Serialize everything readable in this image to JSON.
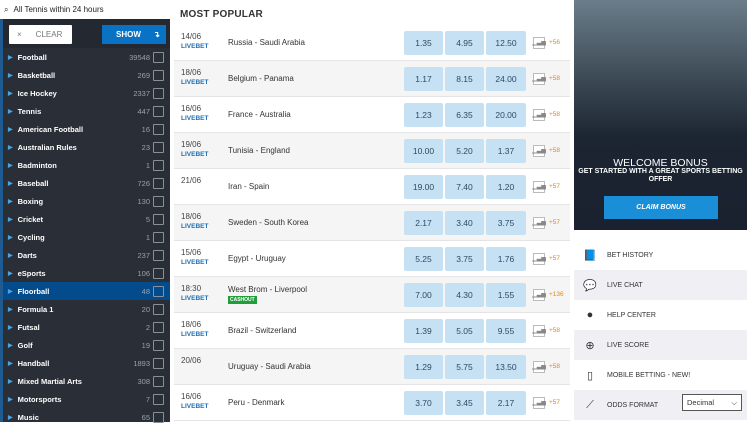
{
  "search": {
    "icon": "search-icon",
    "text": "All Tennis within 24 hours"
  },
  "filter": {
    "clear_label": "CLEAR",
    "show_label": "SHOW"
  },
  "sports": [
    {
      "name": "Football",
      "count": "39548"
    },
    {
      "name": "Basketball",
      "count": "269"
    },
    {
      "name": "Ice Hockey",
      "count": "2337"
    },
    {
      "name": "Tennis",
      "count": "447"
    },
    {
      "name": "American Football",
      "count": "16"
    },
    {
      "name": "Australian Rules",
      "count": "23"
    },
    {
      "name": "Badminton",
      "count": "1"
    },
    {
      "name": "Baseball",
      "count": "726"
    },
    {
      "name": "Boxing",
      "count": "130"
    },
    {
      "name": "Cricket",
      "count": "5"
    },
    {
      "name": "Cycling",
      "count": "1"
    },
    {
      "name": "Darts",
      "count": "237"
    },
    {
      "name": "eSports",
      "count": "106"
    },
    {
      "name": "Floorball",
      "count": "48",
      "active": true
    },
    {
      "name": "Formula 1",
      "count": "20"
    },
    {
      "name": "Futsal",
      "count": "2"
    },
    {
      "name": "Golf",
      "count": "19"
    },
    {
      "name": "Handball",
      "count": "1893"
    },
    {
      "name": "Mixed Martial Arts",
      "count": "308"
    },
    {
      "name": "Motorsports",
      "count": "7"
    },
    {
      "name": "Music",
      "count": "65"
    }
  ],
  "main": {
    "title": "MOST POPULAR",
    "matches": [
      {
        "date": "14/06",
        "live": "LIVEBET",
        "match": "Russia - Saudi Arabia",
        "odds": [
          "1.35",
          "4.95",
          "12.50"
        ],
        "more": "+56"
      },
      {
        "date": "18/06",
        "live": "LIVEBET",
        "match": "Belgium - Panama",
        "odds": [
          "1.17",
          "8.15",
          "24.00"
        ],
        "more": "+58"
      },
      {
        "date": "16/06",
        "live": "LIVEBET",
        "match": "France  - Australia",
        "odds": [
          "1.23",
          "6.35",
          "20.00"
        ],
        "more": "+58"
      },
      {
        "date": "19/06",
        "live": "LIVEBET",
        "match": "Tunisia - England",
        "odds": [
          "10.00",
          "5.20",
          "1.37"
        ],
        "more": "+58"
      },
      {
        "date": "21/06",
        "live": "",
        "match": "Iran - Spain",
        "odds": [
          "19.00",
          "7.40",
          "1.20"
        ],
        "more": "+57"
      },
      {
        "date": "18/06",
        "live": "LIVEBET",
        "match": "Sweden - South Korea",
        "odds": [
          "2.17",
          "3.40",
          "3.75"
        ],
        "more": "+57"
      },
      {
        "date": "15/06",
        "live": "LIVEBET",
        "match": "Egypt - Uruguay",
        "odds": [
          "5.25",
          "3.75",
          "1.76"
        ],
        "more": "+57"
      },
      {
        "date": "18:30",
        "live": "LIVEBET",
        "match": "West Brom - Liverpool",
        "cashout": "CASHOUT",
        "odds": [
          "7.00",
          "4.30",
          "1.55"
        ],
        "more": "+136"
      },
      {
        "date": "18/06",
        "live": "LIVEBET",
        "match": "Brazil - Switzerland",
        "odds": [
          "1.39",
          "5.05",
          "9.55"
        ],
        "more": "+58"
      },
      {
        "date": "20/06",
        "live": "",
        "match": "Uruguay - Saudi Arabia",
        "odds": [
          "1.29",
          "5.75",
          "13.50"
        ],
        "more": "+58"
      },
      {
        "date": "16/06",
        "live": "LIVEBET",
        "match": "Peru - Denmark",
        "odds": [
          "3.70",
          "3.45",
          "2.17"
        ],
        "more": "+57"
      }
    ]
  },
  "banner": {
    "title": "WELCOME BONUS",
    "subtitle": "GET STARTED WITH A GREAT SPORTS BETTING OFFER",
    "cta": "CLAIM BONUS"
  },
  "menu": [
    {
      "label": "BET HISTORY",
      "icon": "book-icon"
    },
    {
      "label": "LIVE CHAT",
      "icon": "chat-icon"
    },
    {
      "label": "HELP CENTER",
      "icon": "help-icon"
    },
    {
      "label": "LIVE SCORE",
      "icon": "scoreboard-icon"
    },
    {
      "label": "MOBILE BETTING - NEW!",
      "icon": "mobile-icon"
    },
    {
      "label": "ODDS FORMAT",
      "icon": "ruler-icon"
    }
  ],
  "odds_format": {
    "selected": "Decimal"
  },
  "colors": {
    "accent": "#0a72c4",
    "odds_bg": "#c6e1f3",
    "active_sport": "#044b8c",
    "more_count": "#e68a00",
    "cashout": "#1f9e3a"
  }
}
